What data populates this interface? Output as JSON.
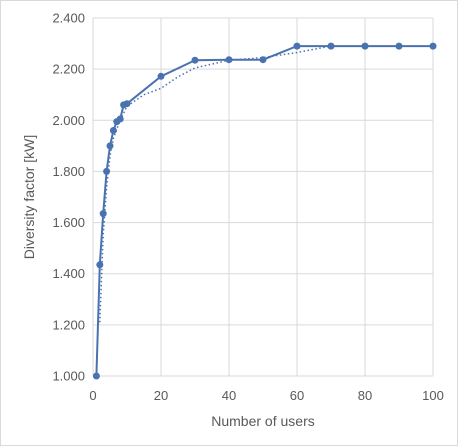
{
  "chart_data": {
    "type": "line",
    "title": "",
    "xlabel": "Number of users",
    "ylabel": "Diversity factor [kW]",
    "xlim": [
      0,
      100
    ],
    "ylim": [
      1.0,
      2.4
    ],
    "x_ticks": [
      0,
      20,
      40,
      60,
      80,
      100
    ],
    "y_ticks": [
      1.0,
      1.2,
      1.4,
      1.6,
      1.8,
      2.0,
      2.2,
      2.4
    ],
    "x_tick_labels": [
      "0",
      "20",
      "40",
      "60",
      "80",
      "100"
    ],
    "y_tick_labels": [
      "1.000",
      "1.200",
      "1.400",
      "1.600",
      "1.800",
      "2.000",
      "2.200",
      "2.400"
    ],
    "grid": "horizontal and vertical",
    "legend": "none",
    "colors": {
      "series": "#4a72b0",
      "grid": "#d9d9d9",
      "text": "#595959"
    },
    "series": [
      {
        "style": "solid line with markers",
        "x": [
          1,
          2,
          3,
          4,
          5,
          6,
          7,
          8,
          9,
          10,
          20,
          30,
          40,
          50,
          60,
          70,
          80,
          90,
          100
        ],
        "y": [
          1.0,
          1.435,
          1.635,
          1.8,
          1.9,
          1.96,
          1.995,
          2.005,
          2.06,
          2.065,
          2.172,
          2.235,
          2.237,
          2.237,
          2.29,
          2.29,
          2.29,
          2.29,
          2.29
        ]
      },
      {
        "style": "dotted trend line",
        "x": [
          2,
          3,
          4,
          5,
          6,
          8,
          10,
          15,
          20,
          25,
          30,
          40,
          50,
          60,
          70
        ],
        "y": [
          1.21,
          1.55,
          1.74,
          1.86,
          1.93,
          2.0,
          2.055,
          2.1,
          2.125,
          2.17,
          2.205,
          2.235,
          2.245,
          2.265,
          2.29
        ]
      }
    ]
  }
}
